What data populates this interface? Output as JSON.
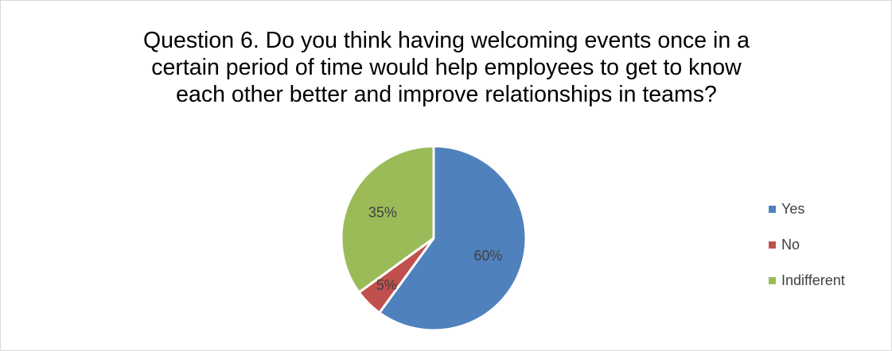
{
  "chart_data": {
    "type": "pie",
    "title": "Question 6. Do you think having welcoming events once in a\ncertain period of time would help employees to get to know\neach other better and improve relationships in teams?",
    "legend_position": "right",
    "slices": [
      {
        "label": "Yes",
        "value": 60,
        "display": "60%",
        "color": "#4f81bd"
      },
      {
        "label": "No",
        "value": 5,
        "display": "5%",
        "color": "#c0504d"
      },
      {
        "label": "Indifferent",
        "value": 35,
        "display": "35%",
        "color": "#9bbb59"
      }
    ]
  }
}
